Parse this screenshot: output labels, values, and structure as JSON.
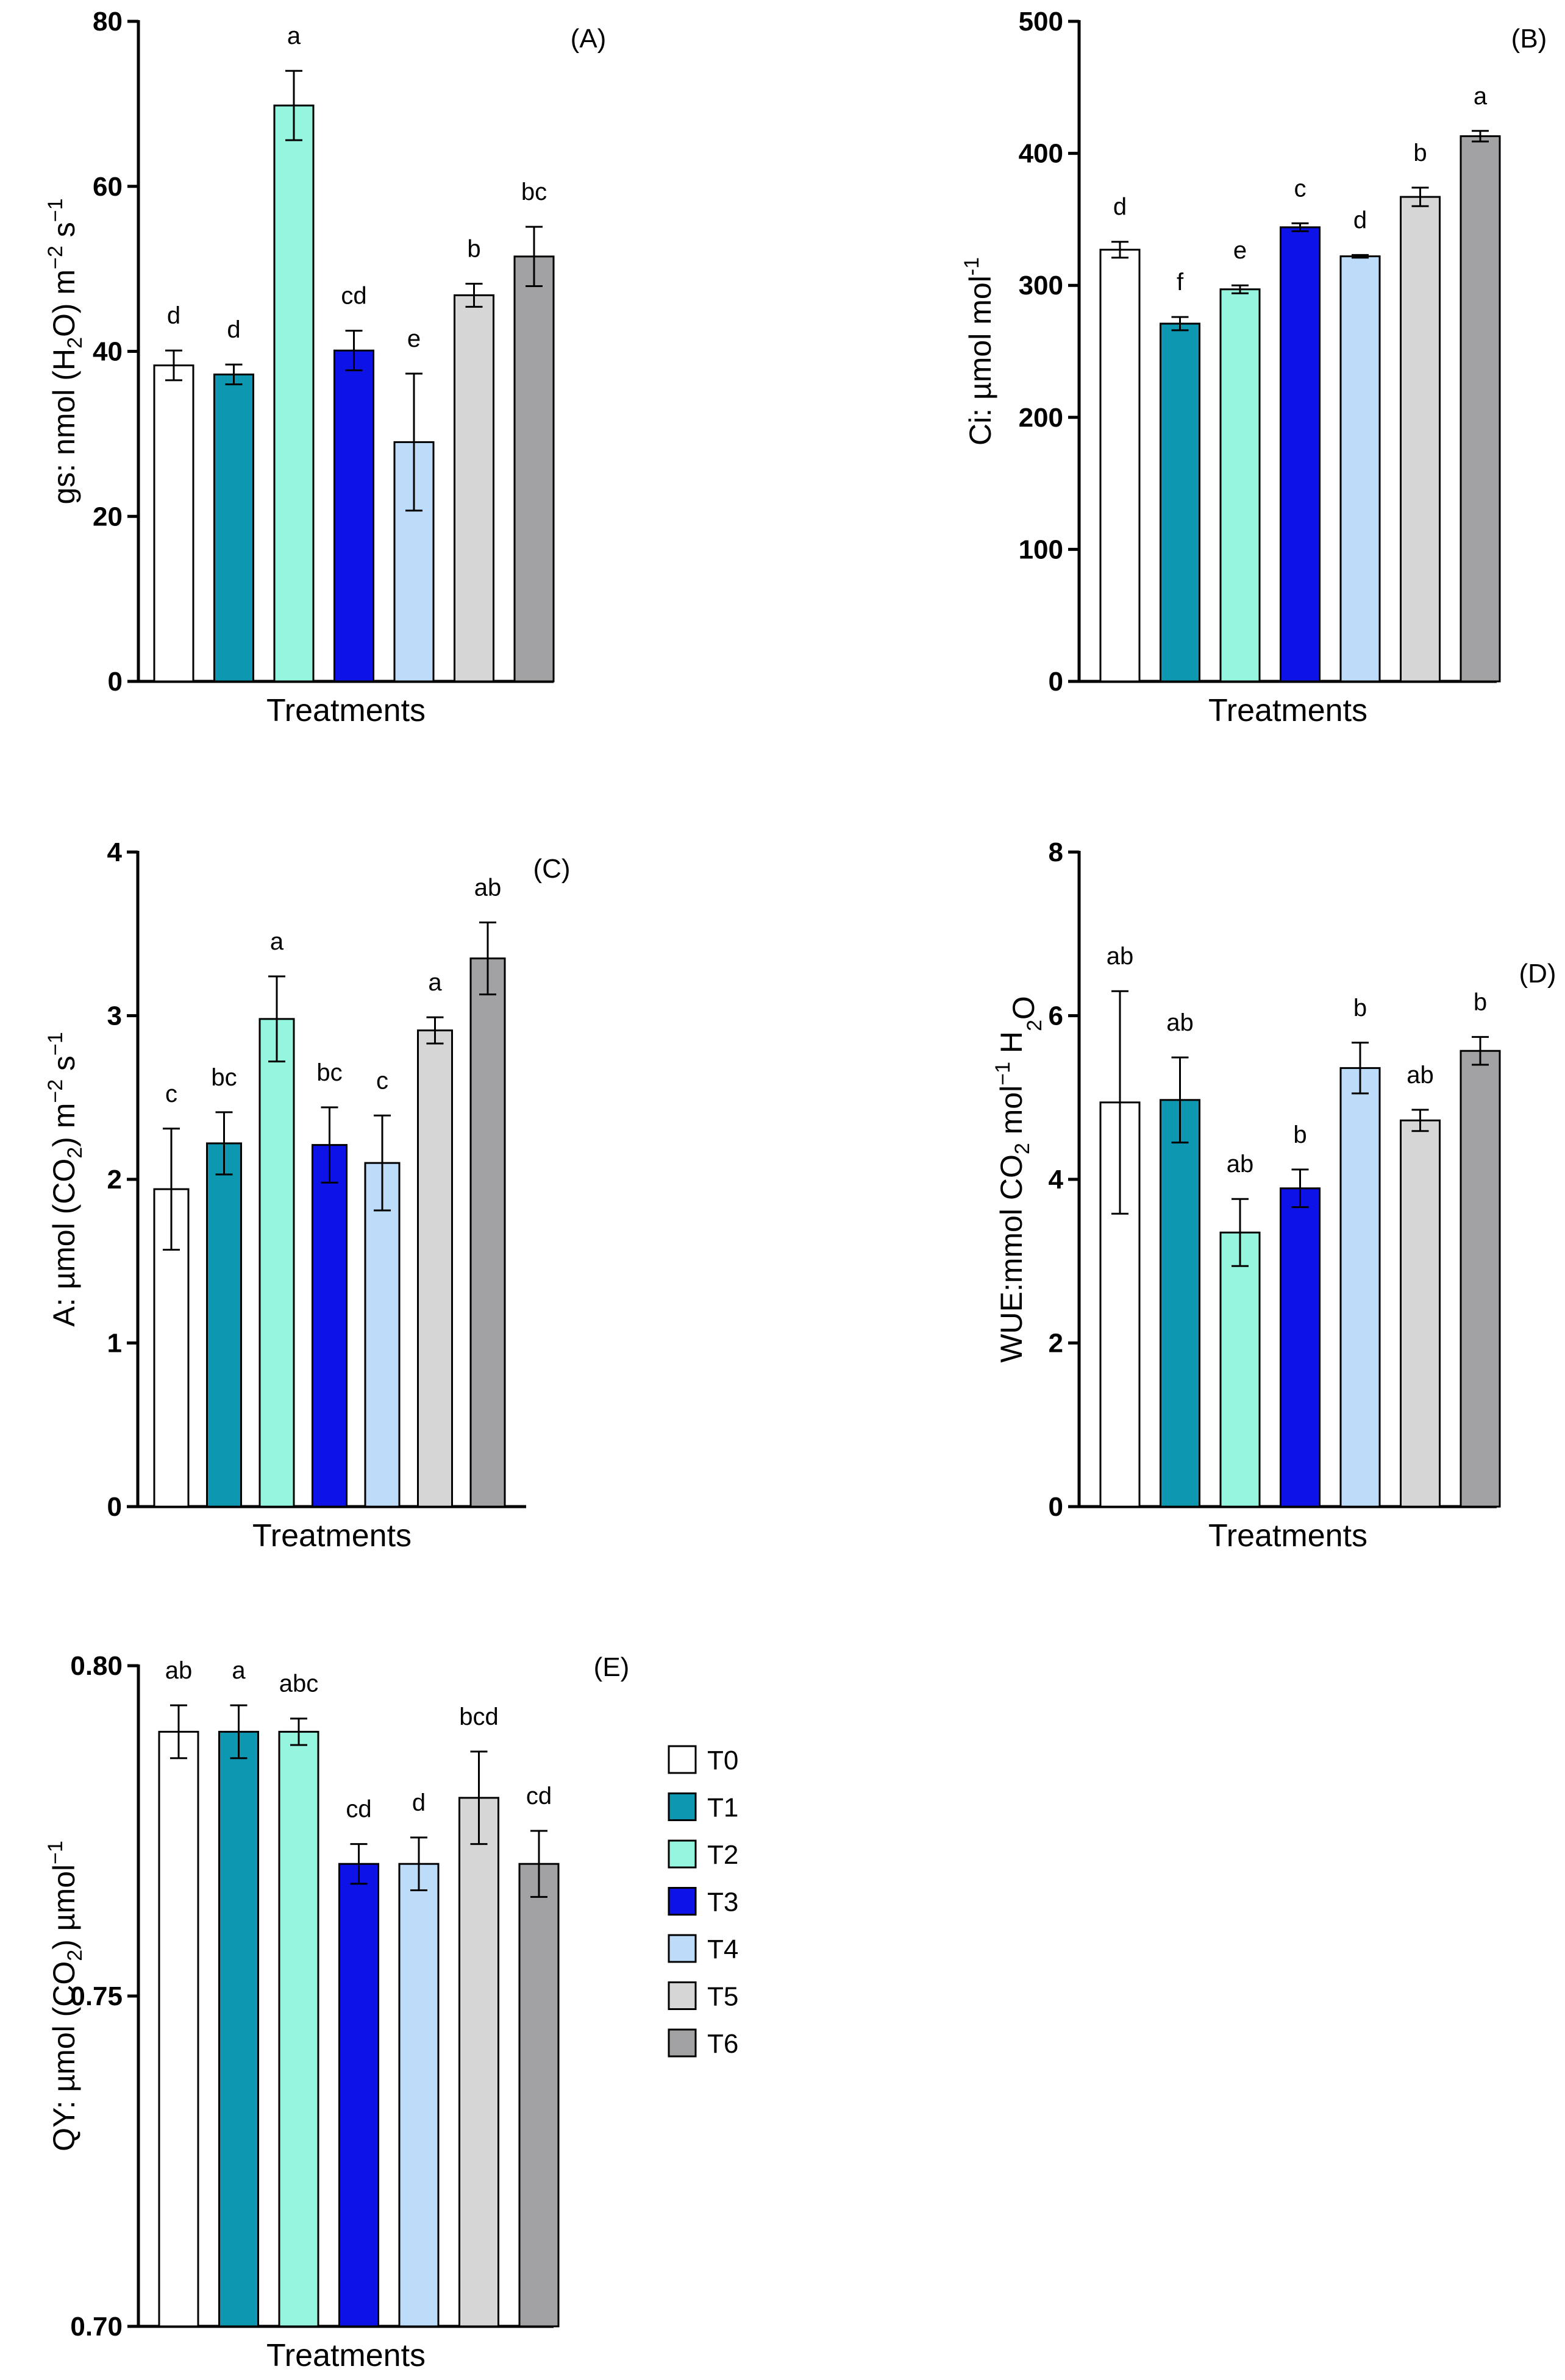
{
  "treatments": [
    "T0",
    "T1",
    "T2",
    "T3",
    "T4",
    "T5",
    "T6"
  ],
  "colors": [
    "#ffffff",
    "#0e97b0",
    "#96f5df",
    "#0d12e6",
    "#bcdcfa",
    "#d6d6d6",
    "#a2a2a5"
  ],
  "chart_data": [
    {
      "panel": "(A)",
      "type": "bar",
      "ylabel_prefix": "gs: nmol (H",
      "ylabel_sub": "2",
      "ylabel_mid": "O) m",
      "ylabel_sup1": "−2",
      "ylabel_mid2": " s",
      "ylabel_sup2": "−1",
      "xlabel": "Treatments",
      "ylim": [
        0,
        80
      ],
      "yticks": [
        "0",
        "20",
        "40",
        "60",
        "80"
      ],
      "ytick_values": [
        0,
        20,
        40,
        60,
        80
      ],
      "values": [
        38.3,
        37.2,
        69.8,
        40.1,
        29.0,
        46.8,
        51.5
      ],
      "errors": [
        1.8,
        1.2,
        4.2,
        2.4,
        8.3,
        1.4,
        3.6
      ],
      "letters": [
        "d",
        "d",
        "a",
        "cd",
        "e",
        "b",
        "bc"
      ]
    },
    {
      "panel": "(B)",
      "type": "bar",
      "ylabel_prefix": "Ci: µmol mol",
      "ylabel_sub": "",
      "ylabel_mid": "",
      "ylabel_sup1": "-1",
      "ylabel_mid2": "",
      "ylabel_sup2": "",
      "xlabel": "Treatments",
      "ylim": [
        0,
        500
      ],
      "yticks": [
        "0",
        "100",
        "200",
        "300",
        "400",
        "500"
      ],
      "ytick_values": [
        0,
        100,
        200,
        300,
        400,
        500
      ],
      "values": [
        327,
        271,
        297,
        344,
        322,
        367,
        413
      ],
      "errors": [
        6,
        5,
        3,
        3,
        1,
        7,
        4
      ],
      "letters": [
        "d",
        "f",
        "e",
        "c",
        "d",
        "b",
        "a"
      ]
    },
    {
      "panel": "(C)",
      "type": "bar",
      "ylabel_prefix": "A: µmol (CO",
      "ylabel_sub": "2",
      "ylabel_mid": ") m",
      "ylabel_sup1": "−2",
      "ylabel_mid2": " s",
      "ylabel_sup2": "−1",
      "xlabel": "Treatments",
      "ylim": [
        0,
        4
      ],
      "yticks": [
        "0",
        "1",
        "2",
        "3",
        "4"
      ],
      "ytick_values": [
        0,
        1,
        2,
        3,
        4
      ],
      "values": [
        1.94,
        2.22,
        2.98,
        2.21,
        2.1,
        2.91,
        3.35
      ],
      "errors": [
        0.37,
        0.19,
        0.26,
        0.23,
        0.29,
        0.08,
        0.22
      ],
      "letters": [
        "c",
        "bc",
        "a",
        "bc",
        "c",
        "a",
        "ab"
      ]
    },
    {
      "panel": "(D)",
      "type": "bar",
      "ylabel_prefix": "WUE:mmol CO",
      "ylabel_sub": "2",
      "ylabel_mid": " mol",
      "ylabel_sup1": "−1",
      "ylabel_mid2": " H",
      "ylabel_sup2": "",
      "ylabel_sub2": "2",
      "ylabel_end": "O",
      "xlabel": "Treatments",
      "ylim": [
        0,
        8
      ],
      "yticks": [
        "0",
        "2",
        "4",
        "6",
        "8"
      ],
      "ytick_values": [
        0,
        2,
        4,
        6,
        8
      ],
      "values": [
        4.94,
        4.97,
        3.35,
        3.89,
        5.36,
        4.72,
        5.57
      ],
      "errors": [
        1.36,
        0.52,
        0.41,
        0.23,
        0.31,
        0.13,
        0.17
      ],
      "letters": [
        "ab",
        "ab",
        "ab",
        "b",
        "b",
        "ab",
        "b"
      ]
    },
    {
      "panel": "(E)",
      "type": "bar",
      "ylabel_prefix": "QY: µmol (CO",
      "ylabel_sub": "2",
      "ylabel_mid": ") µmol",
      "ylabel_sup1": "−1",
      "ylabel_mid2": "",
      "ylabel_sup2": "",
      "xlabel": "Treatments",
      "ylim": [
        0.7,
        0.8
      ],
      "yticks": [
        "0.70",
        "0.75",
        "0.80"
      ],
      "ytick_values": [
        0.7,
        0.75,
        0.8
      ],
      "values": [
        0.79,
        0.79,
        0.79,
        0.77,
        0.77,
        0.78,
        0.77
      ],
      "errors": [
        0.004,
        0.004,
        0.002,
        0.003,
        0.004,
        0.007,
        0.005
      ],
      "letters": [
        "ab",
        "a",
        "abc",
        "cd",
        "d",
        "bcd",
        "cd"
      ]
    }
  ]
}
